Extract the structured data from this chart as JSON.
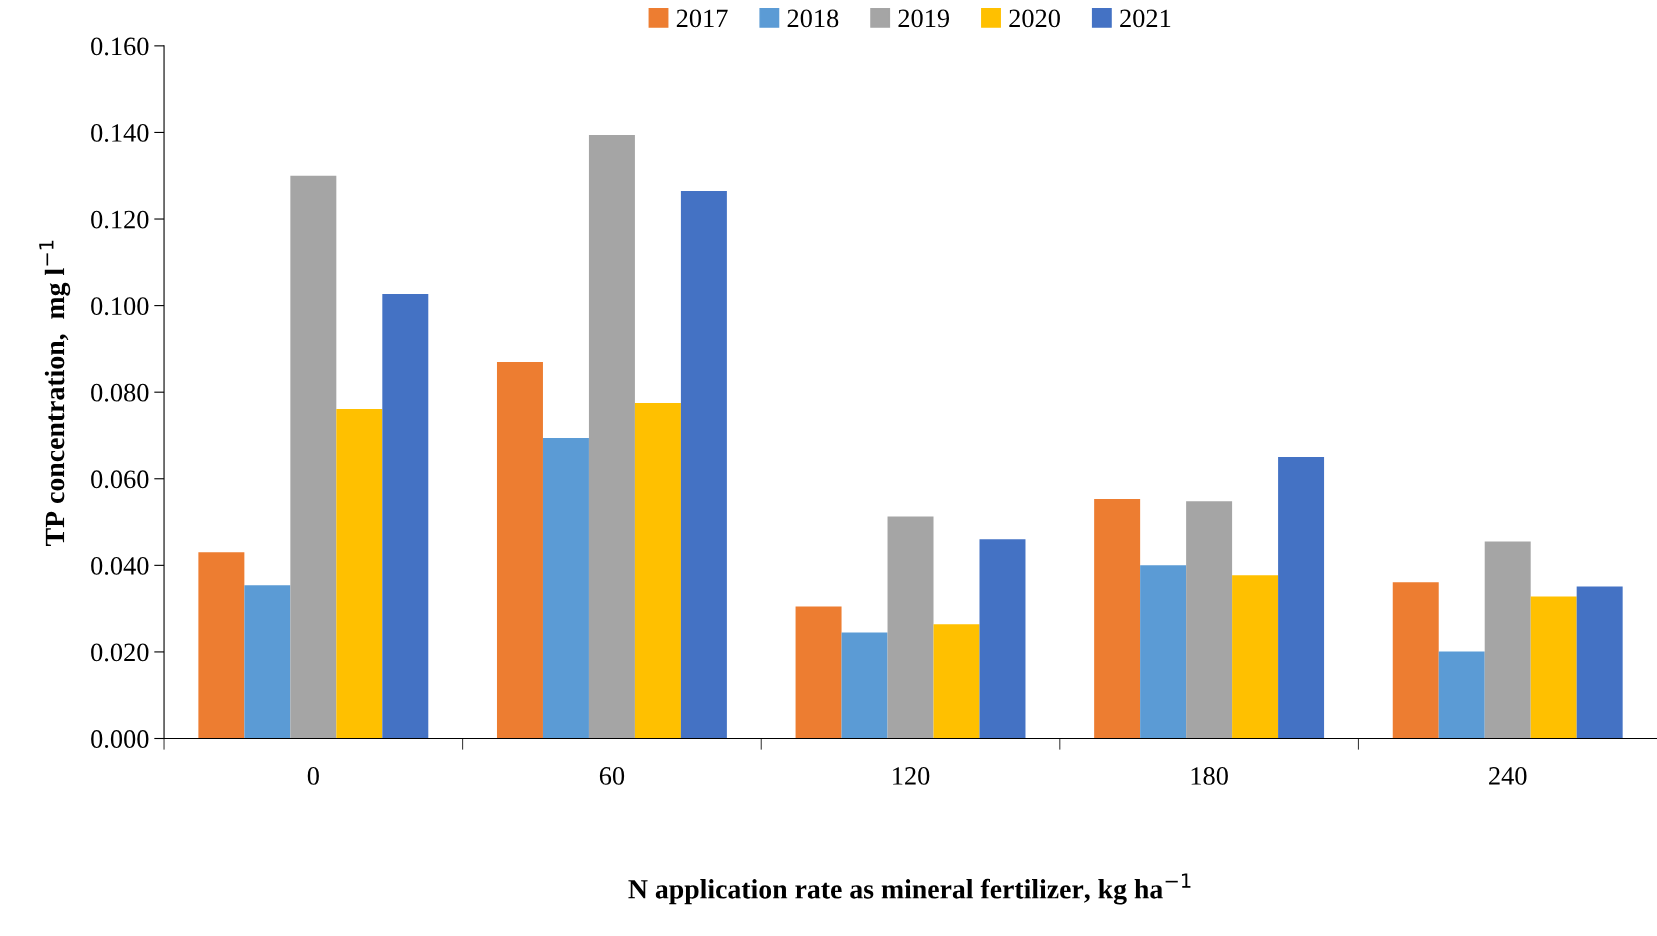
{
  "chart_data": {
    "type": "bar",
    "xlabel": "N application rate as mineral fertilizer, kg ha$^{−1}$",
    "ylabel": "TP concentration,  mg l$^{−1}$",
    "categories": [
      "0",
      "60",
      "120",
      "180",
      "240"
    ],
    "series": [
      {
        "name": "2017",
        "color": "#ed7d31",
        "values": [
          0.043,
          0.087,
          0.0305,
          0.0553,
          0.0361
        ]
      },
      {
        "name": "2018",
        "color": "#5b9bd5",
        "values": [
          0.0354,
          0.0694,
          0.0245,
          0.04,
          0.0201
        ]
      },
      {
        "name": "2019",
        "color": "#a5a5a5",
        "values": [
          0.13,
          0.1394,
          0.0513,
          0.0548,
          0.0455
        ]
      },
      {
        "name": "2020",
        "color": "#ffc000",
        "values": [
          0.0761,
          0.0775,
          0.0264,
          0.0377,
          0.0328
        ]
      },
      {
        "name": "2021",
        "color": "#4472c4",
        "values": [
          0.1027,
          0.1265,
          0.046,
          0.065,
          0.0351
        ]
      }
    ],
    "ylim": [
      0,
      0.16
    ],
    "yticks": [
      {
        "value": 0,
        "label": "0.000"
      },
      {
        "value": 0.02,
        "label": "0.020"
      },
      {
        "value": 0.04,
        "label": "0.040"
      },
      {
        "value": 0.06,
        "label": "0.060"
      },
      {
        "value": 0.08,
        "label": "0.080"
      },
      {
        "value": 0.1,
        "label": "0.100"
      },
      {
        "value": 0.12,
        "label": "0.120"
      },
      {
        "value": 0.14,
        "label": "0.140"
      },
      {
        "value": 0.16,
        "label": "0.160"
      }
    ],
    "grid": false,
    "legend": "top"
  }
}
